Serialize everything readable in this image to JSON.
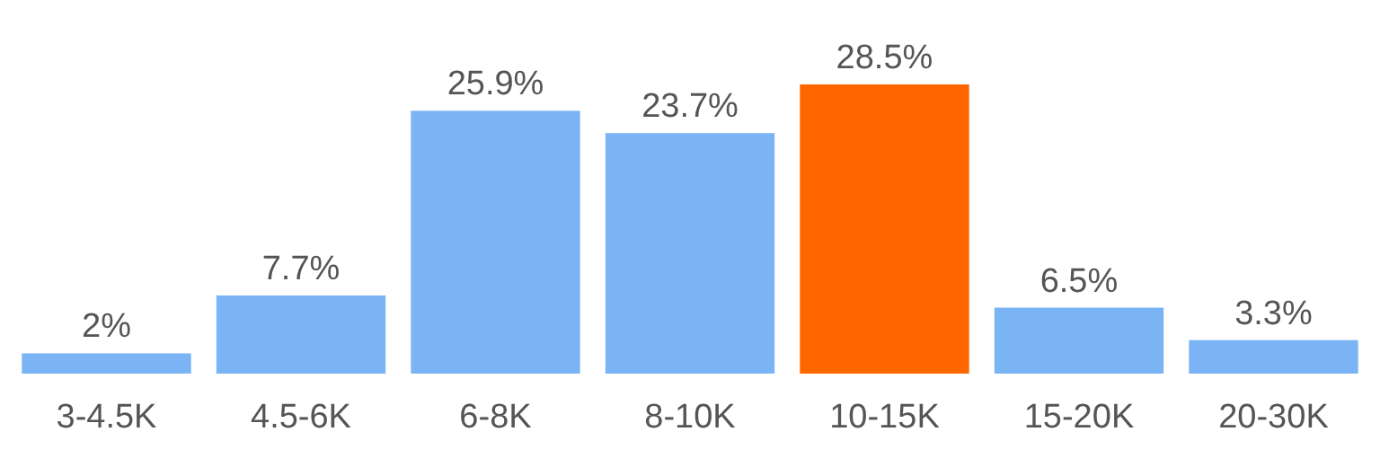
{
  "chart_data": {
    "type": "bar",
    "categories": [
      "3-4.5K",
      "4.5-6K",
      "6-8K",
      "8-10K",
      "10-15K",
      "15-20K",
      "20-30K"
    ],
    "values": [
      2,
      7.7,
      25.9,
      23.7,
      28.5,
      6.5,
      3.3
    ],
    "colors": [
      "#7ab4f5",
      "#7ab4f5",
      "#7ab4f5",
      "#7ab4f5",
      "#ff6600",
      "#7ab4f5",
      "#7ab4f5"
    ],
    "value_labels": [
      "2%",
      "7.7%",
      "25.9%",
      "23.7%",
      "28.5%",
      "6.5%",
      "3.3%"
    ]
  }
}
